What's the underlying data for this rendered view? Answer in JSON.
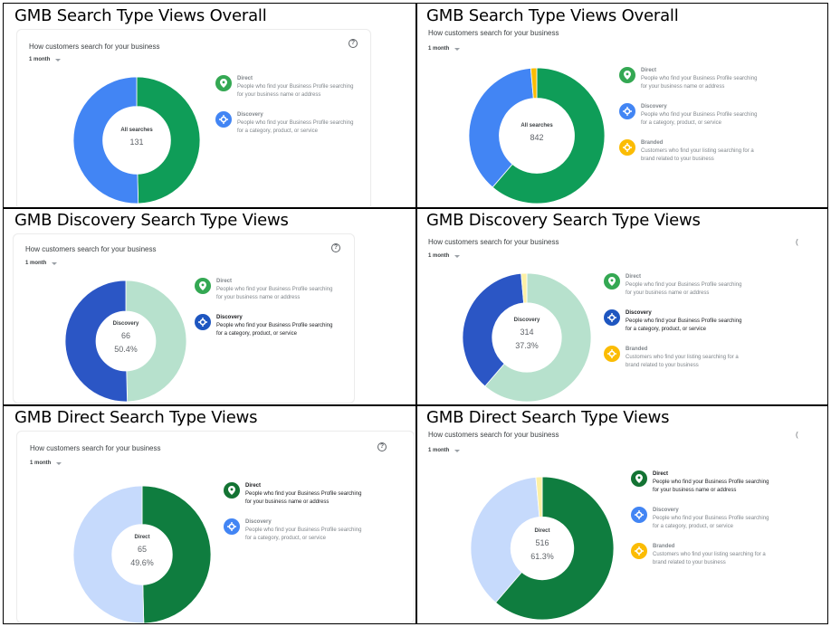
{
  "cells": [
    {
      "title": "GMB Search Type Views Overall",
      "card_title": "How customers search for your business",
      "period": "1 month",
      "center_label": "All searches",
      "center_value": "131",
      "center_pct": "",
      "help": true,
      "legend": [
        {
          "name": "Direct",
          "desc1": "People who find your Business Profile searching",
          "desc2": "for your business name or address",
          "color": "#34a853",
          "icon": "location-pin-icon"
        },
        {
          "name": "Discovery",
          "desc1": "People who find your Business Profile searching",
          "desc2": "for a category, product, or service",
          "color": "#4285f4",
          "icon": "crosshair-icon"
        }
      ]
    },
    {
      "title": "GMB Search Type Views Overall",
      "card_title": "How customers search for your business",
      "period": "1 month",
      "center_label": "All searches",
      "center_value": "842",
      "center_pct": "",
      "help": false,
      "legend": [
        {
          "name": "Direct",
          "desc1": "People who find your Business Profile searching",
          "desc2": "for your business name or address",
          "color": "#34a853",
          "icon": "location-pin-icon"
        },
        {
          "name": "Discovery",
          "desc1": "People who find your Business Profile searching",
          "desc2": "for a category, product, or service",
          "color": "#4285f4",
          "icon": "crosshair-icon"
        },
        {
          "name": "Branded",
          "desc1": "Customers who find your listing searching for a",
          "desc2": "brand related to your business",
          "color": "#fbbc04",
          "icon": "crosshair-icon"
        }
      ]
    },
    {
      "title": "GMB Discovery Search Type Views",
      "card_title": "How customers search for your business",
      "period": "1 month",
      "center_label": "Discovery",
      "center_value": "66",
      "center_pct": "50.4%",
      "help": true,
      "legend": [
        {
          "name": "Direct",
          "desc1": "People who find your Business Profile searching",
          "desc2": "for your business name or address",
          "color": "#34a853",
          "icon": "location-pin-icon"
        },
        {
          "name": "Discovery",
          "desc1": "People who find your Business Profile searching",
          "desc2": "for a category, product, or service",
          "color": "#1e56c0",
          "icon": "crosshair-icon",
          "active": true
        }
      ]
    },
    {
      "title": "GMB Discovery Search Type Views",
      "card_title": "How customers search for your business",
      "period": "1 month",
      "center_label": "Discovery",
      "center_value": "314",
      "center_pct": "37.3%",
      "help": false,
      "legend": [
        {
          "name": "Direct",
          "desc1": "People who find your Business Profile searching",
          "desc2": "for your business name or address",
          "color": "#34a853",
          "icon": "location-pin-icon"
        },
        {
          "name": "Discovery",
          "desc1": "People who find your Business Profile searching",
          "desc2": "for a category, product, or service",
          "color": "#1e56c0",
          "icon": "crosshair-icon",
          "active": true
        },
        {
          "name": "Branded",
          "desc1": "Customers who find your listing searching for a",
          "desc2": "brand related to your business",
          "color": "#fbbc04",
          "icon": "crosshair-icon"
        }
      ]
    },
    {
      "title": "GMB Direct Search Type Views",
      "card_title": "How customers search for your business",
      "period": "1 month",
      "center_label": "Direct",
      "center_value": "65",
      "center_pct": "49.6%",
      "help": true,
      "legend": [
        {
          "name": "Direct",
          "desc1": "People who find your Business Profile searching",
          "desc2": "for your business name or address",
          "color": "#137333",
          "icon": "location-pin-icon",
          "active": true
        },
        {
          "name": "Discovery",
          "desc1": "People who find your Business Profile searching",
          "desc2": "for a category, product, or service",
          "color": "#4285f4",
          "icon": "crosshair-icon"
        }
      ]
    },
    {
      "title": "GMB Direct Search Type Views",
      "card_title": "How customers search for your business",
      "period": "1 month",
      "center_label": "Direct",
      "center_value": "516",
      "center_pct": "61.3%",
      "help": false,
      "legend": [
        {
          "name": "Direct",
          "desc1": "People who find your Business Profile searching",
          "desc2": "for your business name or address",
          "color": "#137333",
          "icon": "location-pin-icon",
          "active": true
        },
        {
          "name": "Discovery",
          "desc1": "People who find your Business Profile searching",
          "desc2": "for a category, product, or service",
          "color": "#4285f4",
          "icon": "crosshair-icon"
        },
        {
          "name": "Branded",
          "desc1": "Customers who find your listing searching for a",
          "desc2": "brand related to your business",
          "color": "#fbbc04",
          "icon": "crosshair-icon"
        }
      ]
    }
  ],
  "chart_data": [
    {
      "type": "pie",
      "title": "GMB Search Type Views Overall",
      "subtitle": "How customers search for your business",
      "period": "1 month",
      "center_text": "All searches 131",
      "categories": [
        "Direct",
        "Discovery"
      ],
      "values": [
        65,
        66
      ],
      "colors": [
        "#0f9d58",
        "#4285f4"
      ]
    },
    {
      "type": "pie",
      "title": "GMB Search Type Views Overall",
      "subtitle": "How customers search for your business",
      "period": "1 month",
      "center_text": "All searches 842",
      "categories": [
        "Direct",
        "Discovery",
        "Branded"
      ],
      "values": [
        516,
        314,
        12
      ],
      "colors": [
        "#0f9d58",
        "#4285f4",
        "#fbbc04"
      ]
    },
    {
      "type": "pie",
      "title": "GMB Discovery Search Type Views",
      "subtitle": "How customers search for your business",
      "period": "1 month",
      "center_text": "Discovery 66 50.4%",
      "categories": [
        "Direct",
        "Discovery"
      ],
      "values": [
        65,
        66
      ],
      "highlight": "Discovery",
      "colors": [
        "#b7e1cd",
        "#2b56c5"
      ]
    },
    {
      "type": "pie",
      "title": "GMB Discovery Search Type Views",
      "subtitle": "How customers search for your business",
      "period": "1 month",
      "center_text": "Discovery 314 37.3%",
      "categories": [
        "Direct",
        "Discovery",
        "Branded"
      ],
      "values": [
        516,
        314,
        12
      ],
      "highlight": "Discovery",
      "colors": [
        "#b7e1cd",
        "#2b56c5",
        "#fdf0a4"
      ]
    },
    {
      "type": "pie",
      "title": "GMB Direct Search Type Views",
      "subtitle": "How customers search for your business",
      "period": "1 month",
      "center_text": "Direct 65 49.6%",
      "categories": [
        "Direct",
        "Discovery"
      ],
      "values": [
        65,
        66
      ],
      "highlight": "Direct",
      "colors": [
        "#0f7d3f",
        "#c6dafc"
      ]
    },
    {
      "type": "pie",
      "title": "GMB Direct Search Type Views",
      "subtitle": "How customers search for your business",
      "period": "1 month",
      "center_text": "Direct 516 61.3%",
      "categories": [
        "Direct",
        "Discovery",
        "Branded"
      ],
      "values": [
        516,
        314,
        12
      ],
      "highlight": "Direct",
      "colors": [
        "#0f7d3f",
        "#c6dafc",
        "#fdf0a4"
      ]
    }
  ]
}
